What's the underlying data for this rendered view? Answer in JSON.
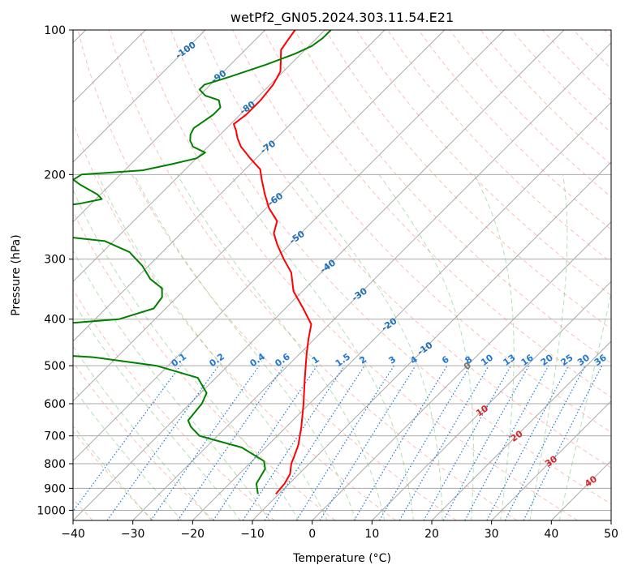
{
  "chart_data": {
    "type": "line",
    "subtype": "skew-T log-P diagram",
    "title": "wetPf2_GN05.2024.303.11.54.E21",
    "xlabel": "Temperature (°C)",
    "ylabel": "Pressure (hPa)",
    "xlim": [
      -40,
      50
    ],
    "ylim": [
      1050,
      100
    ],
    "yscale": "log",
    "x_ticks": [
      -40,
      -30,
      -20,
      -10,
      0,
      10,
      20,
      30,
      40,
      50
    ],
    "y_ticks": [
      100,
      200,
      300,
      400,
      500,
      600,
      700,
      800,
      900,
      1000
    ],
    "grid": true,
    "series": [
      {
        "color": "#ff0000",
        "points": [
          [
            -10.5,
            925
          ],
          [
            -10.8,
            880
          ],
          [
            -11.5,
            840
          ],
          [
            -13.0,
            800
          ],
          [
            -13.8,
            770
          ],
          [
            -15.0,
            730
          ],
          [
            -17.5,
            670
          ],
          [
            -21.0,
            600
          ],
          [
            -24.5,
            540
          ],
          [
            -27.0,
            500
          ],
          [
            -29.0,
            470
          ],
          [
            -31.0,
            440
          ],
          [
            -33.0,
            410
          ],
          [
            -37.0,
            380
          ],
          [
            -41.5,
            350
          ],
          [
            -45.0,
            320
          ],
          [
            -48.5,
            300
          ],
          [
            -52.0,
            280
          ],
          [
            -54.5,
            265
          ],
          [
            -56.0,
            250
          ],
          [
            -59.5,
            235
          ],
          [
            -62.5,
            220
          ],
          [
            -65.5,
            205
          ],
          [
            -67.5,
            195
          ],
          [
            -71.0,
            185
          ],
          [
            -74.5,
            175
          ],
          [
            -76.5,
            168
          ],
          [
            -78.0,
            162
          ],
          [
            -79.5,
            157
          ],
          [
            -79.0,
            150
          ],
          [
            -79.0,
            140
          ],
          [
            -79.5,
            130
          ],
          [
            -80.5,
            122
          ],
          [
            -82.5,
            115
          ],
          [
            -84.0,
            110
          ],
          [
            -84.5,
            105
          ],
          [
            -85.0,
            100
          ]
        ]
      },
      {
        "color": "#008000",
        "points": [
          [
            -13.5,
            925
          ],
          [
            -15.5,
            880
          ],
          [
            -16.0,
            850
          ],
          [
            -16.5,
            820
          ],
          [
            -18.0,
            790
          ],
          [
            -24.0,
            740
          ],
          [
            -33.0,
            700
          ],
          [
            -36.0,
            670
          ],
          [
            -37.5,
            650
          ],
          [
            -38.0,
            600
          ],
          [
            -39.0,
            570
          ],
          [
            -43.0,
            530
          ],
          [
            -52.0,
            500
          ],
          [
            -64.0,
            480
          ],
          [
            -84.0,
            465
          ],
          [
            -92.0,
            455
          ],
          [
            -81.0,
            415
          ],
          [
            -66.0,
            400
          ],
          [
            -62.0,
            380
          ],
          [
            -62.5,
            360
          ],
          [
            -64.0,
            345
          ],
          [
            -67.5,
            330
          ],
          [
            -71.0,
            310
          ],
          [
            -75.5,
            290
          ],
          [
            -81.5,
            275
          ],
          [
            -95.0,
            265
          ],
          [
            -100.0,
            260
          ],
          [
            -101.5,
            250
          ],
          [
            -101.5,
            238
          ],
          [
            -98.5,
            236
          ],
          [
            -92.0,
            230
          ],
          [
            -89.0,
            225
          ],
          [
            -90.5,
            220
          ],
          [
            -95.0,
            210
          ],
          [
            -97.0,
            205
          ],
          [
            -96.5,
            200
          ],
          [
            -87.0,
            196
          ],
          [
            -83.0,
            190
          ],
          [
            -80.0,
            185
          ],
          [
            -79.5,
            180
          ],
          [
            -82.5,
            175
          ],
          [
            -84.0,
            170
          ],
          [
            -85.0,
            165
          ],
          [
            -85.5,
            160
          ],
          [
            -85.0,
            155
          ],
          [
            -84.5,
            150
          ],
          [
            -84.5,
            145
          ],
          [
            -86.0,
            140
          ],
          [
            -89.0,
            137
          ],
          [
            -91.0,
            133
          ],
          [
            -91.0,
            130
          ],
          [
            -88.0,
            125
          ],
          [
            -84.0,
            118
          ],
          [
            -81.0,
            112
          ],
          [
            -79.5,
            108
          ],
          [
            -79.0,
            104
          ],
          [
            -79.0,
            100
          ]
        ]
      }
    ],
    "isotherm_labels": [
      "-100",
      "-90",
      "-80",
      "-70",
      "-60",
      "-50",
      "-40",
      "-30",
      "-20",
      "-10"
    ],
    "mixing_ratio_labels": [
      "0.1",
      "0.2",
      "0.4",
      "0.6",
      "1",
      "1.5",
      "2",
      "3",
      "4",
      "6",
      "8",
      "10",
      "13",
      "16",
      "20",
      "25",
      "30",
      "36"
    ],
    "mixing_ratio_values": [
      0.1,
      0.2,
      0.4,
      0.6,
      1,
      1.5,
      2,
      3,
      4,
      6,
      8,
      10,
      13,
      16,
      20,
      25,
      30,
      36
    ],
    "cape_labels": [
      "0",
      "10",
      "20",
      "30",
      "40"
    ],
    "cape_label_pressures": [
      500,
      620,
      700,
      790,
      870
    ],
    "isotherm_label_pressures": [
      110,
      125,
      145,
      175,
      225,
      270,
      310,
      355,
      410,
      460
    ],
    "colors": {
      "temperature": "#ff0000",
      "dewpoint": "#008000",
      "isotherm_grid": "#aaaaaa",
      "dry_adiabat": "#fa8072",
      "moist_adiabat": "#5cb85c",
      "mixing_ratio": "#1f77d4",
      "isotherm_label": "#1f6fb4",
      "cape_label": "#d62728",
      "cape_label_zero": "#777777"
    }
  }
}
